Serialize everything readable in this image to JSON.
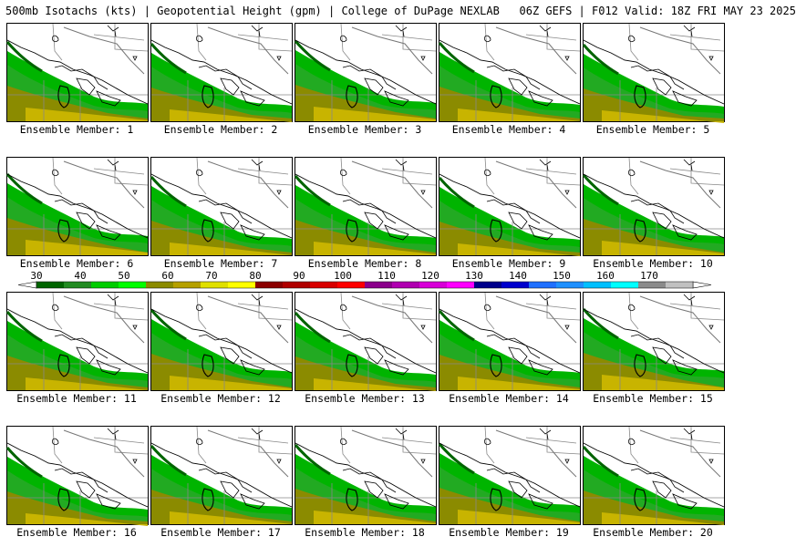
{
  "header": {
    "title": "500mb Isotachs (kts) | Geopotential Height (gpm) | College of DuPage NEXLAB   06Z GEFS | F012 Valid: 18Z FRI MAY 23 2025"
  },
  "panels": [
    {
      "label": "Ensemble Member: 1"
    },
    {
      "label": "Ensemble Member: 2"
    },
    {
      "label": "Ensemble Member: 3"
    },
    {
      "label": "Ensemble Member: 4"
    },
    {
      "label": "Ensemble Member: 5"
    },
    {
      "label": "Ensemble Member: 6"
    },
    {
      "label": "Ensemble Member: 7"
    },
    {
      "label": "Ensemble Member: 8"
    },
    {
      "label": "Ensemble Member: 9"
    },
    {
      "label": "Ensemble Member: 10"
    },
    {
      "label": "Ensemble Member: 11"
    },
    {
      "label": "Ensemble Member: 12"
    },
    {
      "label": "Ensemble Member: 13"
    },
    {
      "label": "Ensemble Member: 14"
    },
    {
      "label": "Ensemble Member: 15"
    },
    {
      "label": "Ensemble Member: 16"
    },
    {
      "label": "Ensemble Member: 17"
    },
    {
      "label": "Ensemble Member: 18"
    },
    {
      "label": "Ensemble Member: 19"
    },
    {
      "label": "Ensemble Member: 20"
    }
  ],
  "colorbar": {
    "tick_labels": [
      "30",
      "40",
      "50",
      "60",
      "70",
      "80",
      "90",
      "100",
      "110",
      "120",
      "130",
      "140",
      "150",
      "160",
      "170"
    ],
    "colors": [
      "#006400",
      "#228b22",
      "#00cd00",
      "#00ff00",
      "#8b8b00",
      "#b5a000",
      "#e0e000",
      "#ffff00",
      "#8b0000",
      "#b00000",
      "#d80000",
      "#ff0000",
      "#8b008b",
      "#b000b0",
      "#d800d8",
      "#ff00ff",
      "#00008b",
      "#0000cd",
      "#1e6fff",
      "#1e90ff",
      "#00bfff",
      "#00ffff",
      "#8b8b8b",
      "#c0c0c0"
    ]
  }
}
